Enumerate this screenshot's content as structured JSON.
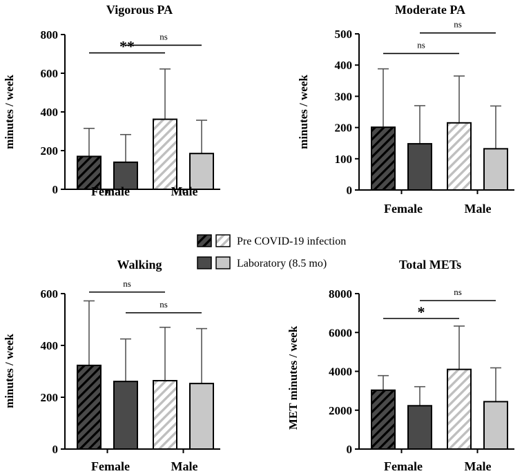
{
  "legend": {
    "pre": {
      "label": "Pre COVID-19 infection",
      "style": "hatched"
    },
    "lab": {
      "label": "Laboratory (8.5 mo)",
      "style": "solid"
    }
  },
  "colors": {
    "female": "#4a4a4a",
    "male": "#c8c8c8",
    "axis": "#000000",
    "error": "#555555"
  },
  "chart_data": [
    {
      "type": "bar",
      "title": "Vigorous PA",
      "ylabel": "minutes / week",
      "ylim": [
        0,
        800
      ],
      "yticks": [
        "0",
        "200",
        "400",
        "600",
        "800"
      ],
      "ytick_values": [
        0,
        200,
        400,
        600,
        800
      ],
      "groups": [
        "Female",
        "Male"
      ],
      "bars": [
        {
          "group": "Female",
          "series": "Pre COVID-19 infection",
          "value": 170,
          "error": 315
        },
        {
          "group": "Female",
          "series": "Laboratory (8.5 mo)",
          "value": 140,
          "error": 283
        },
        {
          "group": "Male",
          "series": "Pre COVID-19 infection",
          "value": 362,
          "error": 622
        },
        {
          "group": "Male",
          "series": "Laboratory (8.5 mo)",
          "value": 185,
          "error": 357
        }
      ],
      "significance": [
        {
          "from": 0,
          "to": 2,
          "level": 705,
          "label": "**"
        },
        {
          "from": 1,
          "to": 3,
          "level": 745,
          "label": "ns"
        }
      ]
    },
    {
      "type": "bar",
      "title": "Moderate PA",
      "ylabel": "minutes / week",
      "ylim": [
        0,
        500
      ],
      "yticks": [
        "0",
        "100",
        "200",
        "300",
        "400",
        "500"
      ],
      "ytick_values": [
        0,
        100,
        200,
        300,
        400,
        500
      ],
      "groups": [
        "Female",
        "Male"
      ],
      "bars": [
        {
          "group": "Female",
          "series": "Pre COVID-19 infection",
          "value": 201,
          "error": 388
        },
        {
          "group": "Female",
          "series": "Laboratory (8.5 mo)",
          "value": 148,
          "error": 270
        },
        {
          "group": "Male",
          "series": "Pre COVID-19 infection",
          "value": 215,
          "error": 365
        },
        {
          "group": "Male",
          "series": "Laboratory (8.5 mo)",
          "value": 132,
          "error": 269
        }
      ],
      "significance": [
        {
          "from": 0,
          "to": 2,
          "level": 437,
          "label": "ns"
        },
        {
          "from": 1,
          "to": 3,
          "level": 503,
          "label": "ns"
        }
      ]
    },
    {
      "type": "bar",
      "title": "Walking",
      "ylabel": "minutes / week",
      "ylim": [
        0,
        600
      ],
      "yticks": [
        "0",
        "200",
        "400",
        "600"
      ],
      "ytick_values": [
        0,
        200,
        400,
        600
      ],
      "groups": [
        "Female",
        "Male"
      ],
      "bars": [
        {
          "group": "Female",
          "series": "Pre COVID-19 infection",
          "value": 323,
          "error": 572
        },
        {
          "group": "Female",
          "series": "Laboratory (8.5 mo)",
          "value": 261,
          "error": 425
        },
        {
          "group": "Male",
          "series": "Pre COVID-19 infection",
          "value": 264,
          "error": 470
        },
        {
          "group": "Male",
          "series": "Laboratory (8.5 mo)",
          "value": 253,
          "error": 465
        }
      ],
      "significance": [
        {
          "from": 0,
          "to": 2,
          "level": 606,
          "label": "ns"
        },
        {
          "from": 1,
          "to": 3,
          "level": 526,
          "label": "ns"
        }
      ]
    },
    {
      "type": "bar",
      "title": "Total METs",
      "ylabel": "MET minutes / week",
      "ylim": [
        0,
        8000
      ],
      "yticks": [
        "0",
        "2000",
        "4000",
        "6000",
        "8000"
      ],
      "ytick_values": [
        0,
        2000,
        4000,
        6000,
        8000
      ],
      "groups": [
        "Female",
        "Male"
      ],
      "bars": [
        {
          "group": "Female",
          "series": "Pre COVID-19 infection",
          "value": 3030,
          "error": 3780
        },
        {
          "group": "Female",
          "series": "Laboratory (8.5 mo)",
          "value": 2230,
          "error": 3210
        },
        {
          "group": "Male",
          "series": "Pre COVID-19 infection",
          "value": 4100,
          "error": 6330
        },
        {
          "group": "Male",
          "series": "Laboratory (8.5 mo)",
          "value": 2440,
          "error": 4180
        }
      ],
      "significance": [
        {
          "from": 0,
          "to": 2,
          "level": 6720,
          "label": "*"
        },
        {
          "from": 1,
          "to": 3,
          "level": 7640,
          "label": "ns"
        }
      ]
    }
  ]
}
